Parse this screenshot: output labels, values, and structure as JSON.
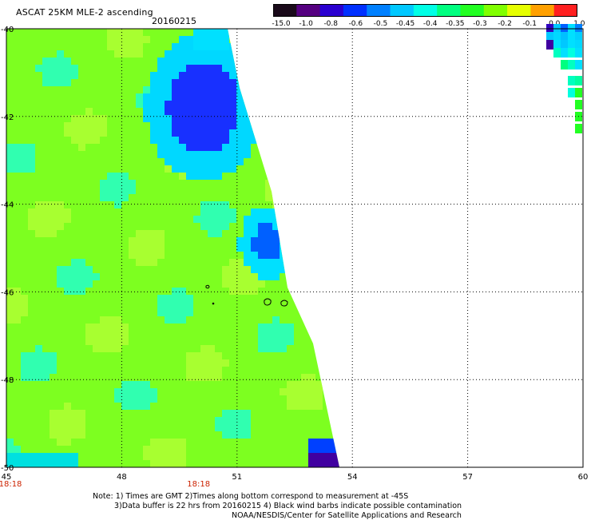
{
  "header": {
    "title": "ASCAT 25KM MLE-2 ascending",
    "date": "20160215"
  },
  "colorbar": {
    "labels": [
      "-15.0",
      "-1.0",
      "-0.8",
      "-0.6",
      "-0.5",
      "-0.45",
      "-0.4",
      "-0.35",
      "-0.3",
      "-0.2",
      "-0.1",
      "0.0",
      "1.0"
    ],
    "colors": [
      "#1a0a1a",
      "#550080",
      "#2a00d0",
      "#0030ff",
      "#0080ff",
      "#00c8ff",
      "#00ffe6",
      "#00ff80",
      "#22ff22",
      "#80ff00",
      "#e6ff00",
      "#ffa000",
      "#ff2020"
    ]
  },
  "map_data": {
    "x_ticks": [
      "45",
      "48",
      "51",
      "54",
      "57",
      "60"
    ],
    "y_ticks": [
      "-40",
      "-42",
      "-44",
      "-46",
      "-48",
      "-50"
    ],
    "lon_range": [
      45,
      60
    ],
    "lat_range": [
      -40,
      -50
    ],
    "time_labels": [
      {
        "lon": 45,
        "text": "18:18"
      },
      {
        "lon": 50,
        "text": "18:18"
      }
    ],
    "time_color": "#cc2200",
    "swath_base_color": "#7dff20"
  },
  "notes": {
    "line1": "Note: 1) Times are GMT 2)Times along bottom correspond to measurement at -45S",
    "line2": "3)Data buffer is 22 hrs from 20160215 4) Black wind barbs indicate possible contamination",
    "line3": "NOAA/NESDIS/Center for Satellite Applications and Research"
  }
}
